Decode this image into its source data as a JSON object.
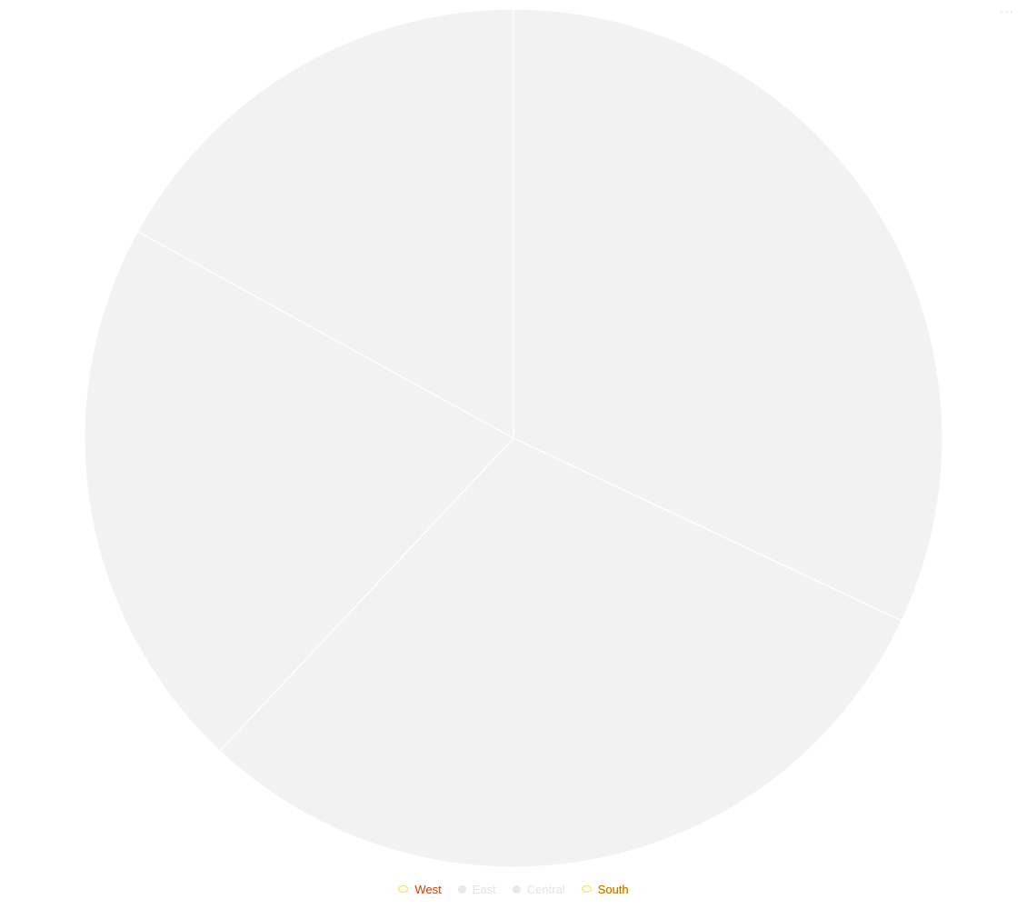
{
  "menu": {
    "icon": "more-horizontal-icon",
    "glyph": "···"
  },
  "chart_data": {
    "type": "pie",
    "title": "",
    "categories": [
      "West",
      "East",
      "Central",
      "South"
    ],
    "values": [
      32,
      30,
      21,
      17
    ],
    "slice_color": "#f2f2f2",
    "border_color": "#ffffff",
    "legend_position": "bottom-center",
    "legend": [
      {
        "label": "West",
        "marker": "hollow"
      },
      {
        "label": "East",
        "marker": "filled"
      },
      {
        "label": "Central",
        "marker": "filled"
      },
      {
        "label": "South",
        "marker": "hollow"
      }
    ]
  }
}
